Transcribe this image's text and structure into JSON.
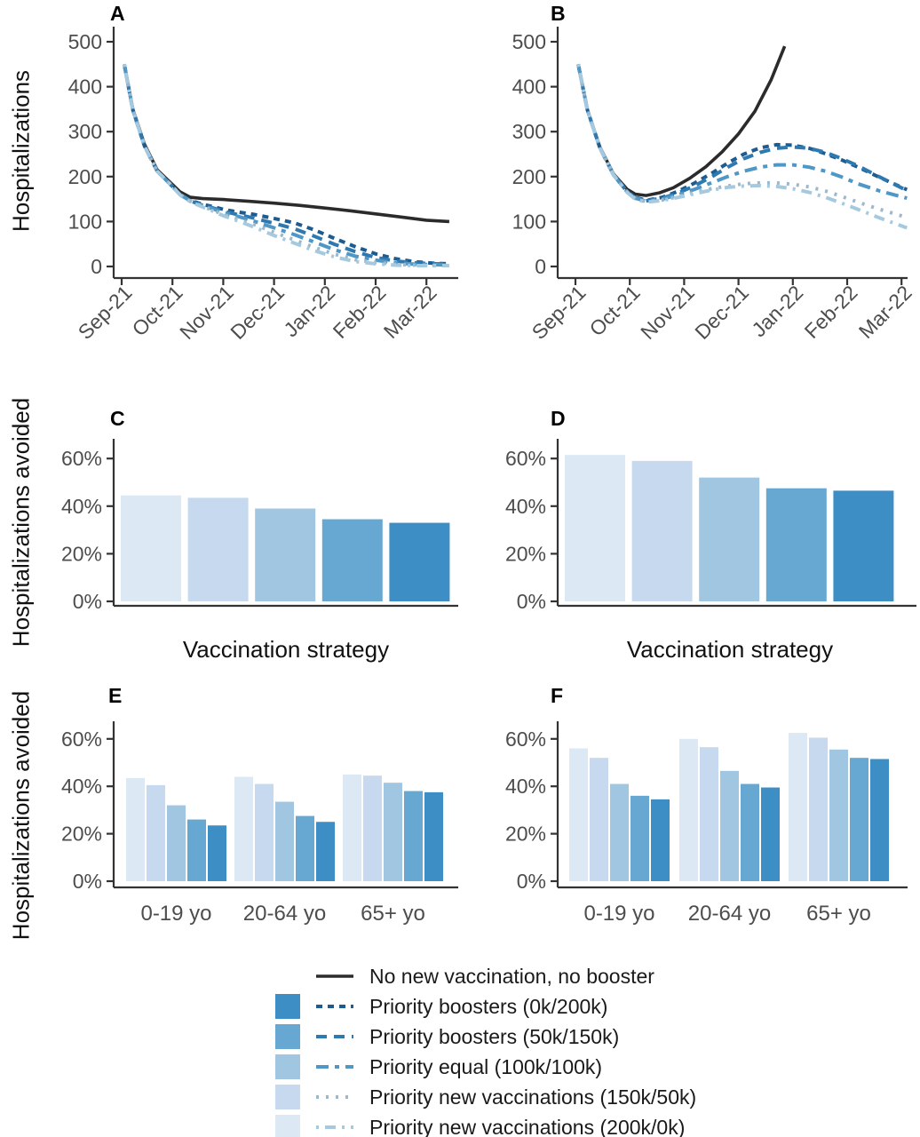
{
  "figure": {
    "panel_letters": [
      "A",
      "B",
      "C",
      "D",
      "E",
      "F"
    ],
    "hosp_ylabel": "Hospitalizations",
    "avoided_ylabel": "Hospitalizations avoided",
    "bar_xlabel": "Vaccination strategy"
  },
  "colors": {
    "axis": "#333333",
    "tick_label": "#4d4d4d",
    "black_line": "#2b2b2b"
  },
  "axes": {
    "months": [
      "Sep-21",
      "Oct-21",
      "Nov-21",
      "Dec-21",
      "Jan-22",
      "Feb-22",
      "Mar-22"
    ],
    "hosp_tick_labels": [
      "0",
      "100",
      "200",
      "300",
      "400",
      "500"
    ],
    "hosp_tick_values": [
      0,
      100,
      200,
      300,
      400,
      500
    ],
    "pct_tick_labels": [
      "0%",
      "20%",
      "40%",
      "60%"
    ],
    "pct_tick_values": [
      0,
      20,
      40,
      60
    ],
    "age_groups": [
      "0-19 yo",
      "20-64 yo",
      "65+ yo"
    ]
  },
  "strategies": [
    {
      "id": "none",
      "label": "No new vaccination, no booster",
      "line_color": "#2b2b2b",
      "fill": null,
      "dash": ""
    },
    {
      "id": "boost200",
      "label": "Priority boosters (0k/200k)",
      "line_color": "#1e5c90",
      "fill": "#3e8ec6",
      "dash": "7 6"
    },
    {
      "id": "boost150",
      "label": "Priority boosters (50k/150k)",
      "line_color": "#2e79b0",
      "fill": "#67a8d3",
      "dash": "12 8"
    },
    {
      "id": "equal",
      "label": "Priority equal (100k/100k)",
      "line_color": "#4f97c6",
      "fill": "#a1c6e1",
      "dash": "14 7 5 7"
    },
    {
      "id": "newvax150",
      "label": "Priority new vaccinations (150k/50k)",
      "line_color": "#9bb8cd",
      "fill": "#c6d9ee",
      "dash": "3 8"
    },
    {
      "id": "newvax200",
      "label": "Priority new vaccinations (200k/0k)",
      "line_color": "#a5c9de",
      "fill": "#dce8f4",
      "dash": "3 7 12 7"
    }
  ],
  "legend_order": [
    "none",
    "boost200",
    "boost150",
    "equal",
    "newvax150",
    "newvax200"
  ],
  "chart_data": [
    {
      "panel": "A",
      "type": "line",
      "ylabel": "Hospitalizations",
      "ylim": [
        0,
        520
      ],
      "yticks": [
        0,
        100,
        200,
        300,
        400,
        500
      ],
      "x_unit": "months from Sep-21",
      "series": [
        {
          "strategy": "none",
          "x": [
            0.05,
            0.22,
            0.45,
            0.7,
            0.95,
            1.15,
            1.35,
            1.6,
            2.0,
            2.5,
            3.0,
            3.5,
            4.0,
            4.5,
            5.0,
            5.5,
            6.0,
            6.45
          ],
          "y": [
            450,
            350,
            272,
            215,
            188,
            166,
            154,
            151,
            149,
            145,
            141,
            136,
            130,
            124,
            117,
            110,
            103,
            100
          ]
        },
        {
          "strategy": "boost200",
          "x": [
            0.05,
            0.22,
            0.45,
            0.7,
            0.95,
            1.15,
            1.35,
            1.6,
            1.8,
            2.0,
            2.3,
            2.6,
            3.0,
            3.4,
            3.8,
            4.2,
            4.6,
            5.0,
            5.4,
            5.8,
            6.2,
            6.45
          ],
          "y": [
            450,
            348,
            268,
            212,
            184,
            160,
            147,
            138,
            133,
            127,
            121,
            116,
            107,
            97,
            81,
            62,
            44,
            28,
            17,
            10,
            7,
            6
          ]
        },
        {
          "strategy": "boost150",
          "x": [
            0.05,
            0.22,
            0.45,
            0.7,
            0.95,
            1.15,
            1.35,
            1.6,
            1.8,
            2.0,
            2.3,
            2.6,
            3.0,
            3.4,
            3.8,
            4.2,
            4.6,
            5.0,
            5.4,
            5.8,
            6.2,
            6.45
          ],
          "y": [
            450,
            348,
            268,
            212,
            184,
            160,
            146,
            136,
            130,
            123,
            115,
            108,
            96,
            84,
            67,
            49,
            33,
            20,
            12,
            8,
            6,
            5
          ]
        },
        {
          "strategy": "equal",
          "x": [
            0.05,
            0.22,
            0.45,
            0.7,
            0.95,
            1.15,
            1.35,
            1.6,
            1.8,
            2.0,
            2.3,
            2.6,
            3.0,
            3.4,
            3.8,
            4.2,
            4.6,
            5.0,
            5.4,
            5.8,
            6.2,
            6.45
          ],
          "y": [
            450,
            348,
            268,
            212,
            184,
            160,
            146,
            135,
            128,
            120,
            111,
            101,
            86,
            71,
            54,
            37,
            23,
            14,
            8,
            5,
            4,
            3
          ]
        },
        {
          "strategy": "newvax150",
          "x": [
            0.05,
            0.22,
            0.45,
            0.7,
            0.95,
            1.15,
            1.35,
            1.6,
            1.8,
            2.0,
            2.3,
            2.6,
            3.0,
            3.4,
            3.8,
            4.2,
            4.6,
            5.0,
            5.4,
            5.8,
            6.2,
            6.45
          ],
          "y": [
            450,
            348,
            268,
            212,
            184,
            159,
            145,
            133,
            125,
            116,
            105,
            94,
            76,
            59,
            42,
            27,
            15,
            9,
            5,
            3,
            2,
            2
          ]
        },
        {
          "strategy": "newvax200",
          "x": [
            0.05,
            0.22,
            0.45,
            0.7,
            0.95,
            1.15,
            1.35,
            1.6,
            1.8,
            2.0,
            2.3,
            2.6,
            3.0,
            3.4,
            3.8,
            4.2,
            4.6,
            5.0,
            5.4,
            5.8,
            6.2,
            6.45
          ],
          "y": [
            450,
            348,
            268,
            212,
            184,
            159,
            144,
            132,
            123,
            113,
            101,
            88,
            69,
            52,
            35,
            21,
            11,
            6,
            3,
            2,
            2,
            2
          ]
        }
      ]
    },
    {
      "panel": "B",
      "type": "line",
      "ylabel": "Hospitalizations",
      "ylim": [
        0,
        520
      ],
      "yticks": [
        0,
        100,
        200,
        300,
        400,
        500
      ],
      "x_unit": "months from Sep-21",
      "series": [
        {
          "strategy": "none",
          "x": [
            0.05,
            0.22,
            0.45,
            0.7,
            0.95,
            1.1,
            1.3,
            1.55,
            1.8,
            2.1,
            2.4,
            2.7,
            3.0,
            3.3,
            3.6,
            3.85
          ],
          "y": [
            450,
            348,
            266,
            206,
            172,
            161,
            158,
            164,
            175,
            196,
            222,
            255,
            295,
            345,
            415,
            490
          ]
        },
        {
          "strategy": "boost200",
          "x": [
            0.05,
            0.22,
            0.45,
            0.7,
            0.95,
            1.1,
            1.3,
            1.6,
            1.9,
            2.2,
            2.5,
            2.8,
            3.1,
            3.4,
            3.7,
            4.0,
            4.3,
            4.6,
            4.9,
            5.2,
            5.6,
            6.1
          ],
          "y": [
            450,
            348,
            264,
            204,
            167,
            154,
            147,
            154,
            168,
            186,
            207,
            230,
            250,
            264,
            271,
            270,
            263,
            251,
            237,
            221,
            198,
            171
          ]
        },
        {
          "strategy": "boost150",
          "x": [
            0.05,
            0.22,
            0.45,
            0.7,
            0.95,
            1.1,
            1.3,
            1.6,
            1.9,
            2.2,
            2.5,
            2.8,
            3.1,
            3.4,
            3.7,
            4.0,
            4.3,
            4.6,
            4.9,
            5.2,
            5.6,
            6.1
          ],
          "y": [
            450,
            348,
            264,
            204,
            167,
            153,
            146,
            152,
            164,
            180,
            199,
            221,
            240,
            254,
            263,
            266,
            263,
            254,
            240,
            224,
            199,
            169
          ]
        },
        {
          "strategy": "equal",
          "x": [
            0.05,
            0.22,
            0.45,
            0.7,
            0.95,
            1.1,
            1.3,
            1.6,
            1.9,
            2.2,
            2.5,
            2.8,
            3.1,
            3.4,
            3.7,
            4.0,
            4.3,
            4.6,
            4.9,
            5.2,
            5.6,
            6.1
          ],
          "y": [
            450,
            348,
            264,
            204,
            166,
            152,
            145,
            150,
            160,
            172,
            186,
            200,
            212,
            221,
            226,
            226,
            221,
            212,
            199,
            184,
            168,
            152
          ]
        },
        {
          "strategy": "newvax150",
          "x": [
            0.05,
            0.22,
            0.45,
            0.7,
            0.95,
            1.1,
            1.3,
            1.6,
            1.9,
            2.2,
            2.5,
            2.8,
            3.1,
            3.4,
            3.7,
            4.0,
            4.3,
            4.6,
            4.9,
            5.2,
            5.6,
            6.1
          ],
          "y": [
            450,
            348,
            264,
            204,
            166,
            151,
            144,
            148,
            156,
            165,
            173,
            179,
            184,
            186,
            186,
            183,
            177,
            168,
            156,
            143,
            127,
            109
          ]
        },
        {
          "strategy": "newvax200",
          "x": [
            0.05,
            0.22,
            0.45,
            0.7,
            0.95,
            1.1,
            1.3,
            1.6,
            1.9,
            2.2,
            2.5,
            2.8,
            3.1,
            3.4,
            3.7,
            4.0,
            4.3,
            4.6,
            4.9,
            5.2,
            5.6,
            6.1
          ],
          "y": [
            450,
            348,
            264,
            204,
            165,
            150,
            143,
            147,
            154,
            162,
            170,
            176,
            179,
            180,
            178,
            173,
            165,
            154,
            141,
            127,
            108,
            86
          ]
        }
      ]
    },
    {
      "panel": "C",
      "type": "bar",
      "xlabel": "Vaccination strategy",
      "ylabel": "Hospitalizations avoided",
      "ylim": [
        0,
        68
      ],
      "bar_order": [
        "newvax200",
        "newvax150",
        "equal",
        "boost150",
        "boost200"
      ],
      "values": [
        44.5,
        43.5,
        39,
        34.5,
        33
      ]
    },
    {
      "panel": "D",
      "type": "bar",
      "xlabel": "Vaccination strategy",
      "ylabel": "Hospitalizations avoided",
      "ylim": [
        0,
        68
      ],
      "bar_order": [
        "newvax200",
        "newvax150",
        "equal",
        "boost150",
        "boost200"
      ],
      "values": [
        61.5,
        59,
        52,
        47.5,
        46.5
      ]
    },
    {
      "panel": "E",
      "type": "grouped_bar",
      "categories": [
        "0-19 yo",
        "20-64 yo",
        "65+ yo"
      ],
      "ylabel": "Hospitalizations avoided",
      "ylim": [
        0,
        68
      ],
      "bar_order": [
        "newvax200",
        "newvax150",
        "equal",
        "boost150",
        "boost200"
      ],
      "series": [
        {
          "strategy": "newvax200",
          "values": [
            43.5,
            44,
            45
          ]
        },
        {
          "strategy": "newvax150",
          "values": [
            40.5,
            41,
            44.5
          ]
        },
        {
          "strategy": "equal",
          "values": [
            32,
            33.5,
            41.5
          ]
        },
        {
          "strategy": "boost150",
          "values": [
            26,
            27.5,
            38
          ]
        },
        {
          "strategy": "boost200",
          "values": [
            23.5,
            25,
            37.5
          ]
        }
      ]
    },
    {
      "panel": "F",
      "type": "grouped_bar",
      "categories": [
        "0-19 yo",
        "20-64 yo",
        "65+ yo"
      ],
      "ylabel": "Hospitalizations avoided",
      "ylim": [
        0,
        68
      ],
      "bar_order": [
        "newvax200",
        "newvax150",
        "equal",
        "boost150",
        "boost200"
      ],
      "series": [
        {
          "strategy": "newvax200",
          "values": [
            56,
            60,
            62.5
          ]
        },
        {
          "strategy": "newvax150",
          "values": [
            52,
            56.5,
            60.5
          ]
        },
        {
          "strategy": "equal",
          "values": [
            41,
            46.5,
            55.5
          ]
        },
        {
          "strategy": "boost150",
          "values": [
            36,
            41,
            52
          ]
        },
        {
          "strategy": "boost200",
          "values": [
            34.5,
            39.5,
            51.5
          ]
        }
      ]
    }
  ]
}
